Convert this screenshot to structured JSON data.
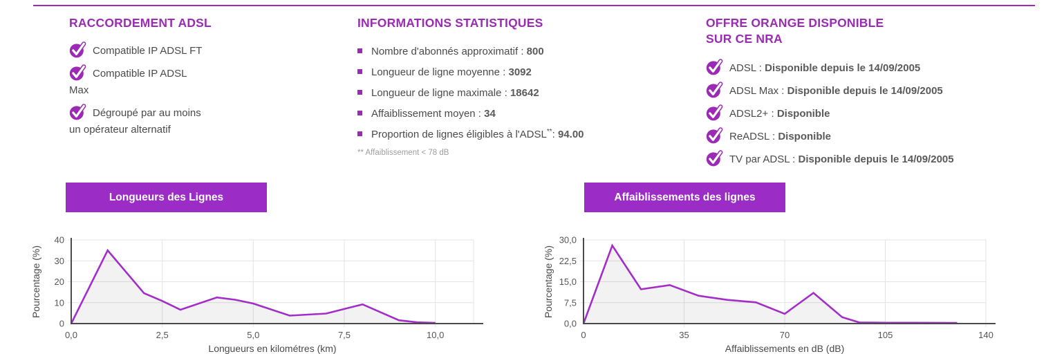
{
  "colors": {
    "accent": "#9b2bb5",
    "button_bg": "#9c2cc6",
    "chart_line": "#a32dc9",
    "chart_fill": "rgba(0,0,0,0.05)",
    "grid": "#e3e3e3",
    "axis": "#4a4a4a",
    "text_gray": "#4a4a4a",
    "footnote_gray": "#9e9e9e"
  },
  "sections": {
    "raccordement": {
      "title": "RACCORDEMENT ADSL",
      "items": [
        {
          "text": "Compatible IP ADSL FT"
        },
        {
          "text": "Compatible IP ADSL Max"
        },
        {
          "text": "Dégroupé par au moins un opérateur alternatif"
        }
      ]
    },
    "stats": {
      "title": "INFORMATIONS STATISTIQUES",
      "items": [
        {
          "label": "Nombre d'abonnés approximatif",
          "sup": "",
          "sep": " : ",
          "value": "800"
        },
        {
          "label": "Longueur de ligne moyenne",
          "sup": "",
          "sep": " : ",
          "value": "3092"
        },
        {
          "label": "Longueur de ligne maximale",
          "sup": "",
          "sep": " : ",
          "value": "18642"
        },
        {
          "label": "Affaiblissement moyen",
          "sup": "",
          "sep": " : ",
          "value": "34"
        },
        {
          "label": "Proportion de lignes éligibles à l'ADSL",
          "sup": "**",
          "sep": ": ",
          "value": "94.00"
        }
      ],
      "footnote": "** Affaiblissement < 78 dB"
    },
    "offre": {
      "title_line1": "OFFRE ORANGE DISPONIBLE",
      "title_line2": "SUR CE NRA",
      "items": [
        {
          "label": "ADSL",
          "sep": " : ",
          "value": "Disponible depuis le 14/09/2005"
        },
        {
          "label": "ADSL Max",
          "sep": " : ",
          "value": "Disponible depuis le 14/09/2005"
        },
        {
          "label": "ADSL2+",
          "sep": " : ",
          "value": "Disponible"
        },
        {
          "label": "ReADSL",
          "sep": " : ",
          "value": "Disponible"
        },
        {
          "label": "TV par ADSL",
          "sep": " : ",
          "value": "Disponible depuis le 14/09/2005"
        }
      ]
    }
  },
  "chart_data": [
    {
      "type": "area",
      "title": "Longueurs des Lignes",
      "xlabel": "Longueurs en kilométres (km)",
      "ylabel": "Pourcentage (%)",
      "xlim": [
        0,
        11.05
      ],
      "ylim": [
        0,
        40
      ],
      "xticks": [
        0,
        2.5,
        5,
        7.5,
        10
      ],
      "xtick_labels": [
        "0,0",
        "2,5",
        "5,0",
        "7,5",
        "10,0"
      ],
      "yticks": [
        0,
        10,
        20,
        30,
        40
      ],
      "ytick_labels": [
        "0",
        "10",
        "20",
        "30",
        "40"
      ],
      "x": [
        0,
        1,
        2,
        2.5,
        3,
        4,
        4.5,
        5,
        6,
        7,
        8,
        9,
        9.5,
        10
      ],
      "y": [
        0,
        35,
        14.5,
        10.8,
        6.6,
        12.5,
        11.4,
        9.6,
        3.8,
        4.8,
        9.2,
        1.6,
        0.6,
        0.3
      ],
      "grid": true,
      "legend": "none"
    },
    {
      "type": "area",
      "title": "Affaiblissements des lignes",
      "xlabel": "Affaiblissements en dB (dB)",
      "ylabel": "Pourcentage (%)",
      "xlim": [
        0,
        140
      ],
      "ylim": [
        0,
        30
      ],
      "xticks": [
        0,
        35,
        70,
        105,
        140
      ],
      "xtick_labels": [
        "0",
        "35",
        "70",
        "105",
        "140"
      ],
      "yticks": [
        0,
        7.5,
        15,
        22.5,
        30
      ],
      "ytick_labels": [
        "0,0",
        "7,5",
        "15,0",
        "22,5",
        "30,0"
      ],
      "x": [
        0,
        10,
        20,
        30,
        40,
        50,
        60,
        70,
        80,
        90,
        96,
        105,
        115,
        130
      ],
      "y": [
        0,
        28,
        12.3,
        13.8,
        10,
        8.5,
        7.6,
        3.5,
        11,
        2.3,
        0.4,
        0.3,
        0.3,
        0.25
      ],
      "grid": true,
      "legend": "none"
    }
  ]
}
